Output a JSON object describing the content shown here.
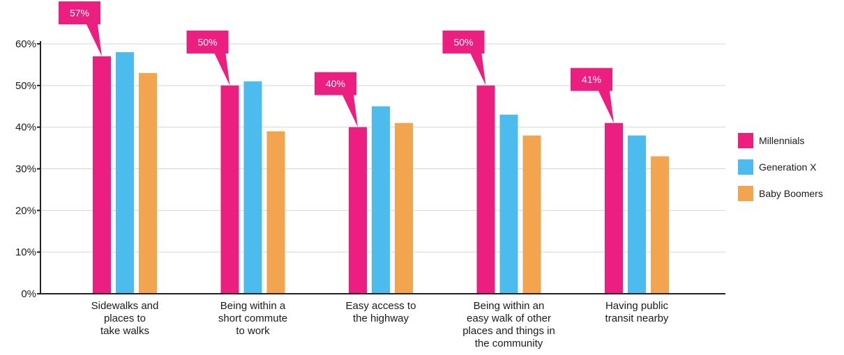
{
  "chart_data": {
    "type": "bar",
    "categories": [
      [
        "Sidewalks and",
        "places to",
        "take walks"
      ],
      [
        "Being within a",
        "short commute",
        "to work"
      ],
      [
        "Easy access to",
        "the highway"
      ],
      [
        "Being within an",
        "easy walk of other",
        "places and things in",
        "the community"
      ],
      [
        "Having public",
        "transit nearby"
      ]
    ],
    "series": [
      {
        "name": "Millennials",
        "color": "#ec1e7f",
        "values": [
          57,
          50,
          40,
          50,
          41
        ]
      },
      {
        "name": "Generation X",
        "color": "#4cbbee",
        "values": [
          58,
          51,
          45,
          43,
          38
        ]
      },
      {
        "name": "Baby Boomers",
        "color": "#f2a44f",
        "values": [
          53,
          39,
          41,
          38,
          33
        ]
      }
    ],
    "callouts": [
      "57%",
      "50%",
      "40%",
      "50%",
      "41%"
    ],
    "y_ticks": [
      "0%",
      "10%",
      "20%",
      "30%",
      "40%",
      "50%",
      "60%"
    ],
    "ylim": [
      0,
      60
    ],
    "grid": true,
    "legend_position": "right"
  }
}
